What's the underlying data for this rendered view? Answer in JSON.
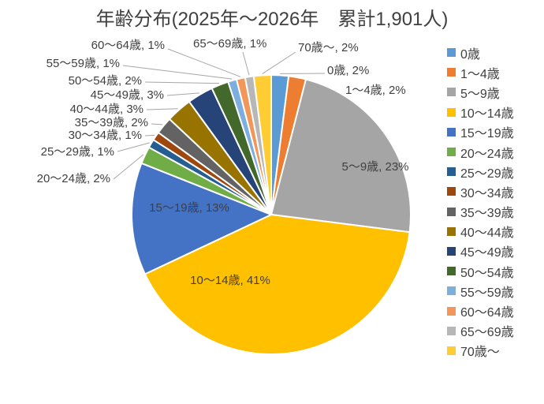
{
  "chart_data": {
    "type": "pie",
    "title": "年齢分布(2025年～2026年　累計1,901人)",
    "categories": [
      "0歳",
      "1～4歳",
      "5～9歳",
      "10～14歳",
      "15～19歳",
      "20～24歳",
      "25～29歳",
      "30～34歳",
      "35～39歳",
      "40～44歳",
      "45～49歳",
      "50～54歳",
      "55～59歳",
      "60～64歳",
      "65～69歳",
      "70歳～"
    ],
    "values_percent": [
      2,
      2,
      23,
      41,
      13,
      2,
      1,
      1,
      2,
      3,
      3,
      2,
      1,
      1,
      1,
      2
    ],
    "slice_labels": [
      "0歳, 2%",
      "1～4歳, 2%",
      "5～9歳, 23%",
      "10～14歳, 41%",
      "15～19歳, 13%",
      "20～24歳, 2%",
      "25～29歳, 1%",
      "30～34歳, 1%",
      "35～39歳, 2%",
      "40～44歳, 3%",
      "45～49歳, 3%",
      "50～54歳, 2%",
      "55～59歳, 1%",
      "60～64歳, 1%",
      "65～69歳, 1%",
      "70歳～, 2%"
    ],
    "colors": [
      "#5B9BD5",
      "#ED7D31",
      "#A5A5A5",
      "#FFC000",
      "#4472C4",
      "#70AD47",
      "#255E91",
      "#9E480E",
      "#636363",
      "#997300",
      "#264478",
      "#43682B",
      "#7CAFDD",
      "#F1975A",
      "#B7B7B7",
      "#FFCD33"
    ],
    "legend_position": "right",
    "start_angle_deg": 0,
    "direction": "clockwise",
    "background_color": "#FFFFFF",
    "text_color": "#404040",
    "leader_line_color": "#A6A6A6"
  }
}
